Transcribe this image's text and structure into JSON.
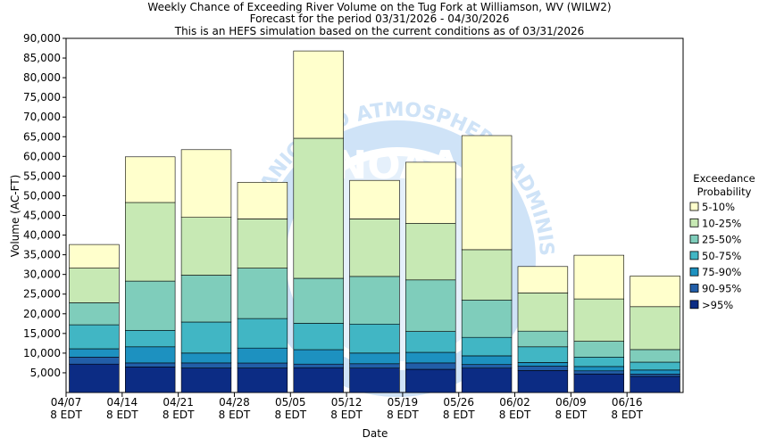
{
  "title_lines": [
    "Weekly Chance of Exceeding River Volume on the Tug Fork at Williamson, WV (WILW2)",
    "Forecast for the period 03/31/2026 - 04/30/2026",
    "This is an HEFS simulation based on the current conditions as of 03/31/2026"
  ],
  "watermark": {
    "ring_text": "NATIONAL OCEANIC AND ATMOSPHERIC ADMINISTRATION",
    "center_text": "NOAA"
  },
  "colors": {
    "5-10%": "#ffffcc",
    "10-25%": "#c7e9b4",
    "25-50%": "#7fcdbb",
    "50-75%": "#41b6c4",
    "75-90%": "#1d91c0",
    "90-95%": "#225ea8",
    ">95%": "#0c2c84",
    "watermark": "#cfe3f7"
  },
  "chart_data": {
    "type": "bar",
    "stacked": true,
    "xlabel": "Date",
    "ylabel": "Volume (AC-FT)",
    "ylim": [
      0,
      90000
    ],
    "yticks": [
      5000,
      10000,
      15000,
      20000,
      25000,
      30000,
      35000,
      40000,
      45000,
      50000,
      55000,
      60000,
      65000,
      70000,
      75000,
      80000,
      85000,
      90000
    ],
    "ytick_labels": [
      "5,000",
      "10,000",
      "15,000",
      "20,000",
      "25,000",
      "30,000",
      "35,000",
      "40,000",
      "45,000",
      "50,000",
      "55,000",
      "60,000",
      "65,000",
      "70,000",
      "75,000",
      "80,000",
      "85,000",
      "90,000"
    ],
    "xticks": [
      {
        "date": "04/07",
        "time": "8 EDT"
      },
      {
        "date": "04/14",
        "time": "8 EDT"
      },
      {
        "date": "04/21",
        "time": "8 EDT"
      },
      {
        "date": "04/28",
        "time": "8 EDT"
      },
      {
        "date": "05/05",
        "time": "8 EDT"
      },
      {
        "date": "05/12",
        "time": "8 EDT"
      },
      {
        "date": "05/19",
        "time": "8 EDT"
      },
      {
        "date": "05/26",
        "time": "8 EDT"
      },
      {
        "date": "06/02",
        "time": "8 EDT"
      },
      {
        "date": "06/09",
        "time": "8 EDT"
      },
      {
        "date": "06/16",
        "time": "8 EDT"
      }
    ],
    "grid": false,
    "legend": {
      "title": [
        "Exceedance",
        "Probability"
      ],
      "placement": "right",
      "entries": [
        "5-10%",
        "10-25%",
        "25-50%",
        "50-75%",
        "75-90%",
        "90-95%",
        ">95%"
      ]
    },
    "bars": [
      {
        "week": "04/07-04/14",
        "levels": [
          7200,
          9000,
          11100,
          17200,
          22800,
          31600,
          37600
        ]
      },
      {
        "week": "04/14-04/21",
        "levels": [
          6500,
          7500,
          11600,
          15800,
          28300,
          48300,
          59900
        ]
      },
      {
        "week": "04/21-04/28",
        "levels": [
          6200,
          7500,
          10000,
          17900,
          29800,
          44500,
          61700
        ]
      },
      {
        "week": "04/28-05/05",
        "levels": [
          6200,
          7500,
          11300,
          18800,
          31600,
          44100,
          53400
        ]
      },
      {
        "week": "05/05-05/12",
        "levels": [
          6300,
          7200,
          10900,
          17600,
          29000,
          64600,
          86800
        ]
      },
      {
        "week": "05/12-05/19",
        "levels": [
          6200,
          7300,
          10000,
          17400,
          29500,
          44100,
          53900
        ]
      },
      {
        "week": "05/19-05/26",
        "levels": [
          5900,
          7500,
          10200,
          15500,
          28600,
          43000,
          58500
        ]
      },
      {
        "week": "05/26-06/02",
        "levels": [
          6200,
          7100,
          9300,
          14000,
          23500,
          36300,
          65300
        ]
      },
      {
        "week": "06/02-06/09",
        "levels": [
          5600,
          6700,
          7600,
          11600,
          15600,
          25300,
          32000
        ]
      },
      {
        "week": "06/09-06/16",
        "levels": [
          4700,
          5500,
          6600,
          9000,
          13000,
          23800,
          34900
        ]
      },
      {
        "week": "06/16-06/23",
        "levels": [
          4100,
          4700,
          5700,
          7700,
          10900,
          21800,
          29600
        ]
      }
    ]
  }
}
